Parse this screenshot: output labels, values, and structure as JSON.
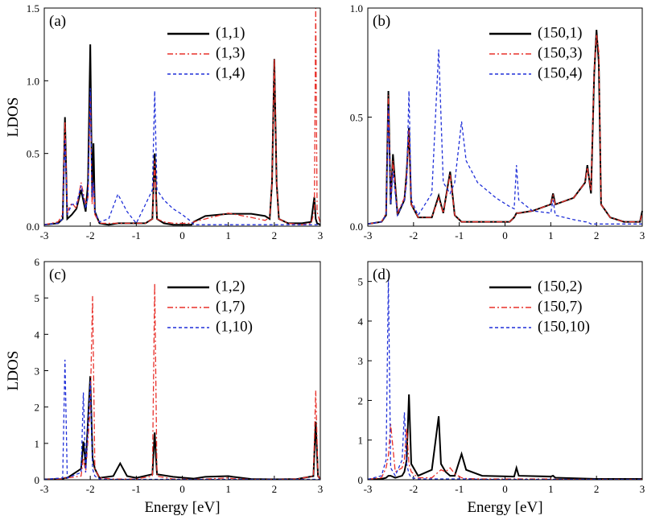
{
  "chart_data": [
    {
      "type": "line",
      "panel_label": "(a)",
      "ylabel": "LDOS",
      "legend": "upper right",
      "x": [
        -3,
        -2.7,
        -2.6,
        -2.55,
        -2.5,
        -2.4,
        -2.3,
        -2.2,
        -2.1,
        -2.05,
        -2.0,
        -1.96,
        -1.93,
        -1.9,
        -1.8,
        -1.6,
        -1.4,
        -1.2,
        -1,
        -0.8,
        -0.65,
        -0.6,
        -0.55,
        -0.4,
        -0.2,
        0,
        0.2,
        0.25,
        0.5,
        1,
        1.5,
        1.8,
        1.9,
        1.95,
        2.0,
        2.05,
        2.1,
        2.3,
        2.6,
        2.8,
        2.87,
        2.9,
        2.93,
        3
      ],
      "series": [
        {
          "name": "(1,1)",
          "color": "#000000",
          "linestyle": "solid",
          "values": [
            0.01,
            0.02,
            0.05,
            0.75,
            0.05,
            0.08,
            0.12,
            0.25,
            0.1,
            0.3,
            1.25,
            0.2,
            0.57,
            0.1,
            0.02,
            0.01,
            0.02,
            0.02,
            0.02,
            0.02,
            0.05,
            0.5,
            0.05,
            0.02,
            0.01,
            0.01,
            0.01,
            0.03,
            0.07,
            0.085,
            0.085,
            0.07,
            0.05,
            0.3,
            1.15,
            0.3,
            0.05,
            0.02,
            0.02,
            0.03,
            0.2,
            0.05,
            0.02,
            0.01
          ]
        },
        {
          "name": "(1,3)",
          "color": "#e8302a",
          "linestyle": "dashdot",
          "values": [
            0.01,
            0.03,
            0.08,
            0.72,
            0.1,
            0.16,
            0.12,
            0.3,
            0.15,
            0.2,
            0.9,
            0.15,
            0.3,
            0.08,
            0.02,
            0.02,
            0.02,
            0.02,
            0.02,
            0.02,
            0.05,
            0.45,
            0.05,
            0.03,
            0.02,
            0.02,
            0.02,
            0.03,
            0.05,
            0.09,
            0.06,
            0.04,
            0.06,
            0.3,
            1.15,
            0.3,
            0.05,
            0.02,
            0.01,
            0.02,
            0.1,
            1.5,
            0.1,
            0.02
          ]
        },
        {
          "name": "(1,4)",
          "color": "#1f2fd8",
          "linestyle": "dashed",
          "values": [
            0.01,
            0.02,
            0.05,
            0.6,
            0.08,
            0.15,
            0.15,
            0.28,
            0.12,
            0.2,
            0.95,
            0.2,
            0.3,
            0.1,
            0.03,
            0.05,
            0.22,
            0.1,
            0.02,
            0.15,
            0.25,
            0.93,
            0.25,
            0.18,
            0.12,
            0.08,
            0.03,
            0.01,
            0.01,
            0.01,
            0.01,
            0.01,
            0.01,
            0.01,
            0.01,
            0.01,
            0.01,
            0.01,
            0.01,
            0.01,
            0.01,
            0.01,
            0.01,
            0.01
          ]
        }
      ],
      "xlim": [
        -3,
        3
      ],
      "xticks": [
        -3,
        -2,
        -1,
        0,
        1,
        2,
        3
      ],
      "ylim": [
        0,
        1.5
      ],
      "yticks": [
        {
          "value": 0,
          "label": "0.0"
        },
        {
          "value": 0.5,
          "label": "0.5"
        },
        {
          "value": 1,
          "label": "1.0"
        },
        {
          "value": 1.5,
          "label": "1.5"
        }
      ]
    },
    {
      "type": "line",
      "panel_label": "(b)",
      "legend": "upper right",
      "x": [
        -3,
        -2.7,
        -2.6,
        -2.55,
        -2.5,
        -2.45,
        -2.35,
        -2.2,
        -2.15,
        -2.1,
        -2.05,
        -1.9,
        -1.6,
        -1.45,
        -1.35,
        -1.2,
        -1.1,
        -0.95,
        -0.85,
        -0.6,
        -0.2,
        0.1,
        0.2,
        0.25,
        0.3,
        0.6,
        1.0,
        1.05,
        1.1,
        1.5,
        1.75,
        1.8,
        1.88,
        1.95,
        2.0,
        2.05,
        2.1,
        2.3,
        2.6,
        2.95,
        3
      ],
      "series": [
        {
          "name": "(150,1)",
          "color": "#000000",
          "linestyle": "solid",
          "values": [
            0.01,
            0.02,
            0.05,
            0.62,
            0.1,
            0.33,
            0.05,
            0.12,
            0.25,
            0.45,
            0.1,
            0.04,
            0.04,
            0.14,
            0.06,
            0.25,
            0.05,
            0.02,
            0.02,
            0.02,
            0.02,
            0.02,
            0.04,
            0.06,
            0.06,
            0.07,
            0.1,
            0.15,
            0.1,
            0.13,
            0.2,
            0.28,
            0.15,
            0.7,
            0.9,
            0.75,
            0.1,
            0.04,
            0.02,
            0.02,
            0.07
          ]
        },
        {
          "name": "(150,3)",
          "color": "#e8302a",
          "linestyle": "dashdot",
          "values": [
            0.01,
            0.02,
            0.06,
            0.6,
            0.12,
            0.3,
            0.06,
            0.13,
            0.24,
            0.44,
            0.1,
            0.04,
            0.04,
            0.13,
            0.06,
            0.24,
            0.05,
            0.02,
            0.02,
            0.02,
            0.02,
            0.02,
            0.04,
            0.06,
            0.06,
            0.07,
            0.1,
            0.14,
            0.1,
            0.13,
            0.2,
            0.27,
            0.16,
            0.72,
            0.88,
            0.8,
            0.1,
            0.04,
            0.02,
            0.02,
            0.06
          ]
        },
        {
          "name": "(150,4)",
          "color": "#1f2fd8",
          "linestyle": "dashed",
          "values": [
            0.01,
            0.02,
            0.05,
            0.55,
            0.1,
            0.25,
            0.05,
            0.12,
            0.2,
            0.62,
            0.12,
            0.05,
            0.15,
            0.81,
            0.2,
            0.15,
            0.2,
            0.48,
            0.3,
            0.2,
            0.13,
            0.09,
            0.08,
            0.28,
            0.12,
            0.07,
            0.06,
            0.12,
            0.05,
            0.03,
            0.02,
            0.02,
            0.01,
            0.01,
            0.01,
            0.01,
            0.01,
            0.01,
            0.01,
            0.01,
            0.01
          ]
        }
      ],
      "xlim": [
        -3,
        3
      ],
      "xticks": [
        -3,
        -2,
        -1,
        0,
        1,
        2,
        3
      ],
      "ylim": [
        0,
        1
      ],
      "yticks": [
        {
          "value": 0,
          "label": "0.0"
        },
        {
          "value": 0.5,
          "label": "0.5"
        },
        {
          "value": 1,
          "label": "1.0"
        }
      ]
    },
    {
      "type": "line",
      "panel_label": "(c)",
      "ylabel": "LDOS",
      "xlabel": "Energy [eV]",
      "legend": "upper right",
      "x": [
        -3,
        -2.6,
        -2.55,
        -2.5,
        -2.2,
        -2.15,
        -2.1,
        -2.0,
        -1.95,
        -1.9,
        -1.8,
        -1.5,
        -1.35,
        -1.2,
        -1.0,
        -0.65,
        -0.6,
        -0.55,
        -0.2,
        0.25,
        0.5,
        1.0,
        1.1,
        1.5,
        2.0,
        2.5,
        2.85,
        2.9,
        2.95,
        3
      ],
      "series": [
        {
          "name": "(1,2)",
          "color": "#000000",
          "linestyle": "solid",
          "values": [
            0.01,
            0.02,
            0.05,
            0.05,
            0.3,
            1.05,
            0.4,
            2.85,
            0.6,
            0.3,
            0.05,
            0.1,
            0.45,
            0.1,
            0.05,
            0.15,
            1.3,
            0.15,
            0.08,
            0.03,
            0.08,
            0.1,
            0.08,
            0.02,
            0.01,
            0.02,
            0.1,
            1.6,
            0.1,
            0.02
          ]
        },
        {
          "name": "(1,7)",
          "color": "#e8302a",
          "linestyle": "dashdot",
          "values": [
            0.01,
            0.02,
            0.05,
            0.05,
            0.1,
            0.6,
            0.2,
            2.0,
            5.05,
            0.3,
            0.05,
            0.02,
            0.02,
            0.02,
            0.02,
            0.1,
            5.4,
            0.1,
            0.02,
            0.01,
            0.02,
            0.05,
            0.03,
            0.01,
            0.01,
            0.02,
            0.1,
            2.45,
            0.1,
            0.02
          ]
        },
        {
          "name": "(1,10)",
          "color": "#1f2fd8",
          "linestyle": "dashed",
          "values": [
            0.01,
            0.05,
            3.3,
            0.05,
            0.2,
            2.4,
            0.2,
            2.7,
            0.3,
            0.1,
            0.02,
            0.01,
            0.01,
            0.01,
            0.01,
            0.01,
            0.01,
            0.01,
            0.01,
            0.01,
            0.01,
            0.01,
            0.01,
            0.01,
            0.01,
            0.01,
            0.01,
            0.01,
            0.01,
            0.01
          ]
        }
      ],
      "xlim": [
        -3,
        3
      ],
      "xticks": [
        -3,
        -2,
        -1,
        0,
        1,
        2,
        3
      ],
      "ylim": [
        0,
        6
      ],
      "yticks": [
        0,
        1,
        2,
        3,
        4,
        5,
        6
      ]
    },
    {
      "type": "line",
      "panel_label": "(d)",
      "xlabel": "Energy [eV]",
      "legend": "upper right",
      "x": [
        -3,
        -2.7,
        -2.6,
        -2.55,
        -2.5,
        -2.4,
        -2.25,
        -2.2,
        -2.15,
        -2.1,
        -2.05,
        -1.9,
        -1.6,
        -1.45,
        -1.4,
        -1.3,
        -1.2,
        -1.1,
        -0.95,
        -0.85,
        -0.5,
        0.2,
        0.25,
        0.3,
        1.0,
        1.05,
        1.1,
        2.0,
        3
      ],
      "series": [
        {
          "name": "(150,2)",
          "color": "#000000",
          "linestyle": "solid",
          "values": [
            0.01,
            0.02,
            0.05,
            0.1,
            0.1,
            0.05,
            0.1,
            0.2,
            0.5,
            2.15,
            0.4,
            0.1,
            0.25,
            1.6,
            0.4,
            0.2,
            0.1,
            0.1,
            0.65,
            0.25,
            0.1,
            0.08,
            0.3,
            0.1,
            0.08,
            0.1,
            0.05,
            0.02,
            0.02
          ]
        },
        {
          "name": "(150,7)",
          "color": "#e8302a",
          "linestyle": "dashdot",
          "values": [
            0.01,
            0.05,
            0.3,
            0.6,
            1.4,
            0.2,
            0.3,
            0.5,
            1.3,
            0.4,
            0.2,
            0.05,
            0.05,
            0.2,
            0.25,
            0.2,
            0.3,
            0.15,
            0.05,
            0.03,
            0.02,
            0.02,
            0.03,
            0.02,
            0.02,
            0.02,
            0.01,
            0.01,
            0.01
          ]
        },
        {
          "name": "(150,10)",
          "color": "#1f2fd8",
          "linestyle": "dashed",
          "values": [
            0.01,
            0.1,
            0.5,
            5.05,
            0.3,
            0.1,
            0.5,
            1.7,
            0.4,
            0.15,
            0.05,
            0.02,
            0.02,
            0.02,
            0.02,
            0.02,
            0.02,
            0.02,
            0.02,
            0.02,
            0.01,
            0.01,
            0.01,
            0.01,
            0.01,
            0.01,
            0.01,
            0.01,
            0.01
          ]
        }
      ],
      "xlim": [
        -3,
        3
      ],
      "xticks": [
        -3,
        -2,
        -1,
        0,
        1,
        2,
        3
      ],
      "ylim": [
        0,
        5.5
      ],
      "yticks": [
        0,
        1,
        2,
        3,
        4,
        5
      ]
    }
  ]
}
